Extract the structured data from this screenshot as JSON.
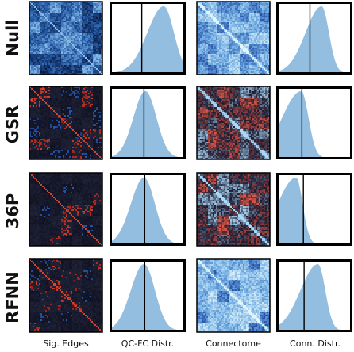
{
  "figure": {
    "row_labels": [
      "Null",
      "GSR",
      "36P",
      "RFNN"
    ],
    "column_labels": [
      "Sig. Edges",
      "QC-FC Distr.",
      "Connectome",
      "Conn. Distr."
    ]
  },
  "chart_data": {
    "type": "heatmap-grid",
    "rows": [
      "Null",
      "GSR",
      "36P",
      "RFNN"
    ],
    "columns": [
      "Sig. Edges",
      "QC-FC Distr.",
      "Connectome",
      "Conn. Distr."
    ],
    "panels": {
      "Null": {
        "sig_edges_palette": "blue",
        "connectome_palette": "light-blue",
        "qcfc_peak": 0.72,
        "qcfc_width": 0.14,
        "qcfc_skew": 1.6,
        "qcfc_zero_line": 0.42,
        "conn_peak": 0.6,
        "conn_width": 0.1,
        "conn_skew": 2.2,
        "conn_zero_line": 0.44
      },
      "GSR": {
        "sig_edges_palette": "dark-red",
        "connectome_palette": "red-blue",
        "qcfc_peak": 0.47,
        "qcfc_width": 0.15,
        "qcfc_skew": 1.1,
        "qcfc_zero_line": 0.45,
        "conn_peak": 0.32,
        "conn_width": 0.1,
        "conn_skew": 2.6,
        "conn_zero_line": 0.33
      },
      "36P": {
        "sig_edges_palette": "dark-red",
        "connectome_palette": "red-blue",
        "qcfc_peak": 0.45,
        "qcfc_width": 0.15,
        "qcfc_skew": 1.2,
        "qcfc_zero_line": 0.46,
        "conn_peak": 0.25,
        "conn_width": 0.09,
        "conn_skew": 2.8,
        "conn_zero_line": 0.35
      },
      "RFNN": {
        "sig_edges_palette": "dark-red",
        "connectome_palette": "light-blue",
        "qcfc_peak": 0.45,
        "qcfc_width": 0.15,
        "qcfc_skew": 1.2,
        "qcfc_zero_line": 0.46,
        "conn_peak": 0.55,
        "conn_width": 0.1,
        "conn_skew": 2.4,
        "conn_zero_line": 0.36
      }
    },
    "colors": {
      "distribution_fill": "#93bedf",
      "frame": "#000000",
      "zero_line": "#000000"
    }
  }
}
